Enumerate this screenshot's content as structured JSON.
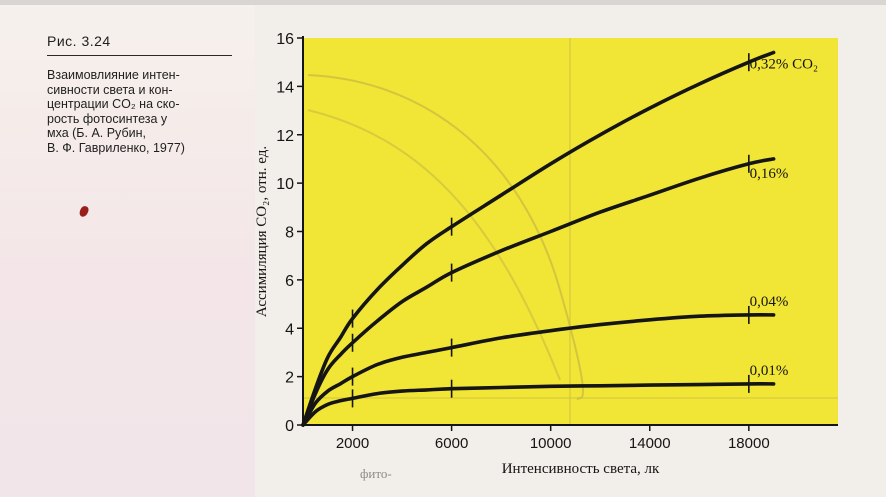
{
  "caption": {
    "fig_label": "Рис. 3.24",
    "text": "Взаимовлияние интен-\nсивности света и кон-\nцентрации CO₂ на ско-\nрость фотосинтеза у\nмха (Б. А. Рубин,\nВ. Ф. Гавриленко, 1977)"
  },
  "page_footer_text": "фито-",
  "colors": {
    "plot_background": "#f1e535",
    "curve": "#151515",
    "axis": "#151515",
    "page": "#f2eee9"
  },
  "chart_data": {
    "type": "line",
    "title": "",
    "xlabel": "Интенсивность света, лк",
    "ylabel": "Ассимиляция CO₂, отн. ед.",
    "xlim": [
      0,
      21600
    ],
    "ylim": [
      0,
      16
    ],
    "x_ticks": [
      2000,
      6000,
      10000,
      14000,
      18000
    ],
    "x_tick_labels": [
      "2000",
      "6000",
      "10000",
      "14000",
      "18000"
    ],
    "y_ticks": [
      0,
      2,
      4,
      6,
      8,
      10,
      12,
      14,
      16
    ],
    "y_tick_labels": [
      "0",
      "2",
      "4",
      "6",
      "8",
      "10",
      "12",
      "14",
      "16"
    ],
    "grid": false,
    "series": [
      {
        "name": "0,32% CO₂",
        "x": [
          0,
          500,
          1000,
          1500,
          2000,
          3000,
          4000,
          5000,
          6000,
          8000,
          10000,
          12000,
          14000,
          16000,
          18000,
          19000
        ],
        "y": [
          0,
          1.5,
          2.8,
          3.6,
          4.4,
          5.6,
          6.6,
          7.5,
          8.2,
          9.5,
          10.8,
          12.0,
          13.1,
          14.1,
          15.0,
          15.4
        ],
        "markers_at": [
          2000,
          6000,
          18000
        ]
      },
      {
        "name": "0,16%",
        "x": [
          0,
          500,
          1000,
          1500,
          2000,
          3000,
          4000,
          5000,
          6000,
          8000,
          10000,
          12000,
          14000,
          16000,
          18000,
          19000
        ],
        "y": [
          0,
          1.3,
          2.3,
          2.9,
          3.4,
          4.3,
          5.1,
          5.7,
          6.3,
          7.2,
          8.0,
          8.8,
          9.5,
          10.2,
          10.8,
          11.0
        ],
        "markers_at": [
          2000,
          6000,
          18000
        ]
      },
      {
        "name": "0,04%",
        "x": [
          0,
          500,
          1000,
          1500,
          2000,
          3000,
          4000,
          5000,
          6000,
          8000,
          10000,
          12000,
          14000,
          16000,
          18000,
          19000
        ],
        "y": [
          0,
          0.9,
          1.4,
          1.7,
          2.0,
          2.5,
          2.8,
          3.0,
          3.2,
          3.6,
          3.9,
          4.15,
          4.35,
          4.5,
          4.55,
          4.55
        ],
        "markers_at": [
          2000,
          6000,
          18000
        ]
      },
      {
        "name": "0,01%",
        "x": [
          0,
          500,
          1000,
          1500,
          2000,
          3000,
          4000,
          5000,
          6000,
          8000,
          10000,
          12000,
          14000,
          16000,
          18000,
          19000
        ],
        "y": [
          0,
          0.55,
          0.85,
          1.0,
          1.1,
          1.3,
          1.4,
          1.45,
          1.5,
          1.55,
          1.6,
          1.62,
          1.65,
          1.67,
          1.7,
          1.7
        ],
        "markers_at": [
          2000,
          6000,
          18000
        ]
      }
    ]
  }
}
